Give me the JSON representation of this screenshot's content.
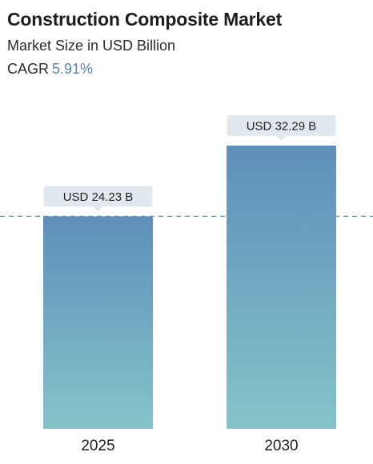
{
  "header": {
    "title": "Construction Composite Market",
    "subtitle": "Market Size in USD Billion",
    "cagr_label": "CAGR",
    "cagr_value": "5.91%"
  },
  "colors": {
    "bar_top": "#5e8fba",
    "bar_bottom": "#84c4c9",
    "callout_bg": "#e2e9ee",
    "reference_line": "#6b8fb5",
    "cagr_accent": "#5b86b3"
  },
  "chart_data": {
    "type": "bar",
    "categories": [
      "2025",
      "2030"
    ],
    "values": [
      24.23,
      32.29
    ],
    "data_labels": [
      "USD 24.23 B",
      "USD 32.29 B"
    ],
    "ylim": [
      0,
      32.29
    ],
    "reference_line": 24.23,
    "grid": false,
    "legend": "none"
  }
}
